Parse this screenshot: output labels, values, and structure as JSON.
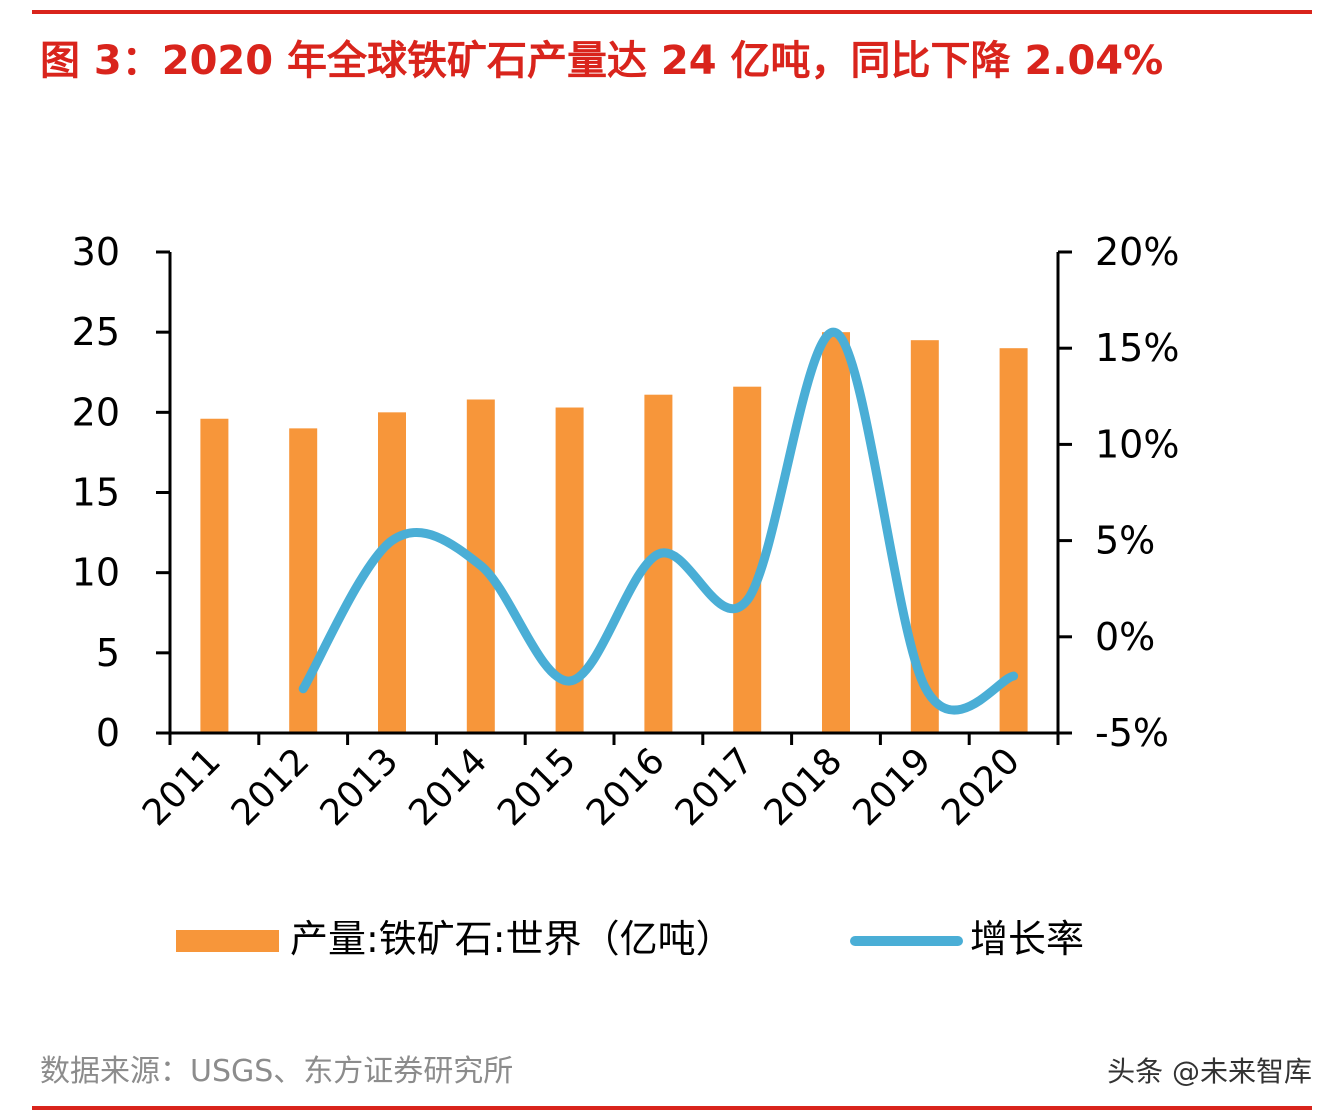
{
  "title": "图 3：2020 年全球铁矿石产量达 24 亿吨，同比下降 2.04%",
  "source": "数据来源：USGS、东方证券研究所",
  "watermark": "头条 @未来智库",
  "colors": {
    "accent": "#d9241c",
    "bar": "#f7963a",
    "line": "#4aaed6"
  },
  "chart_data": {
    "type": "bar+line",
    "categories": [
      "2011",
      "2012",
      "2013",
      "2014",
      "2015",
      "2016",
      "2017",
      "2018",
      "2019",
      "2020"
    ],
    "series": [
      {
        "name": "产量:铁矿石:世界（亿吨）",
        "type": "bar",
        "axis": "left",
        "values": [
          19.6,
          19.0,
          20.0,
          20.8,
          20.3,
          21.1,
          21.6,
          25.0,
          24.5,
          24.0
        ]
      },
      {
        "name": "增长率",
        "type": "line",
        "axis": "right",
        "smooth": true,
        "values": [
          null,
          -2.7,
          5.0,
          3.7,
          -2.3,
          4.3,
          1.9,
          15.8,
          -2.6,
          -2.04
        ]
      }
    ],
    "left_axis": {
      "ylim": [
        0,
        30
      ],
      "ticks": [
        "0",
        "5",
        "10",
        "15",
        "20",
        "25",
        "30"
      ]
    },
    "right_axis": {
      "ylim": [
        -5,
        20
      ],
      "ticks": [
        "-5%",
        "0%",
        "5%",
        "10%",
        "15%",
        "20%"
      ]
    },
    "grid": false,
    "legend_placement": "bottom"
  }
}
